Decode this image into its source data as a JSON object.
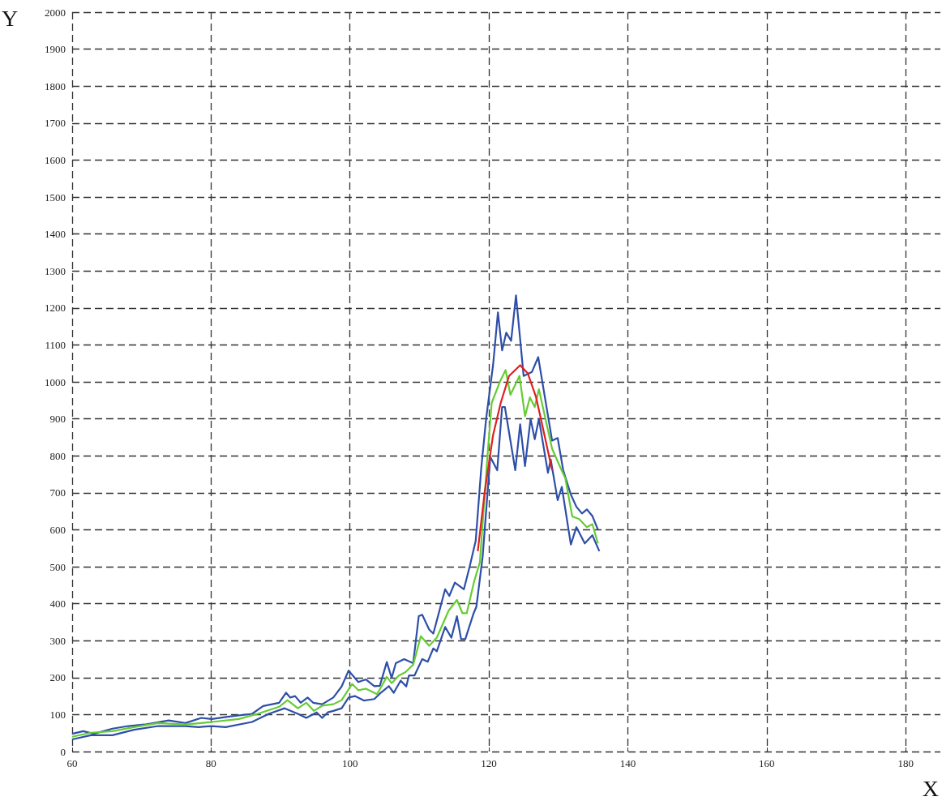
{
  "chart_data": {
    "type": "line",
    "xlabel": "X",
    "ylabel": "Y",
    "xlim": [
      60,
      185
    ],
    "xticks": [
      60,
      80,
      100,
      120,
      140,
      160,
      180
    ],
    "ylim": [
      0,
      2000
    ],
    "yticks": [
      0,
      100,
      200,
      300,
      400,
      500,
      600,
      700,
      800,
      900,
      1000,
      1100,
      1200,
      1300,
      1400,
      1500,
      1600,
      1700,
      1800,
      1900,
      2000
    ],
    "grid": true,
    "marker": "none",
    "line_style": "solid",
    "series": [
      {
        "color": "#2e4fa8",
        "x": [
          60,
          61.6,
          63.1,
          65.8,
          68.1,
          70.4,
          73.9,
          76.3,
          78.6,
          80.1,
          82.8,
          85.9,
          87.5,
          89.8,
          90.8,
          91.4,
          92.1,
          92.9,
          93.9,
          94.7,
          96,
          97.6,
          98.8,
          99.8,
          101.2,
          102.3,
          103.5,
          104.3,
          105.3,
          106,
          106.6,
          107.8,
          109.1,
          109.9,
          110.4,
          111.4,
          112,
          113.7,
          114.3,
          115.1,
          116.4,
          117.2,
          118.1,
          118.9,
          119.6,
          120.6,
          121.3,
          121.9,
          122.5,
          123.2,
          123.9,
          125,
          126.2,
          127.1,
          129.1,
          129.9,
          130.7,
          131.8,
          132.6,
          133.4,
          134.1,
          134.9,
          135.7
        ],
        "values": [
          48,
          55,
          48,
          62,
          69,
          73,
          84,
          77,
          91,
          88,
          95,
          102,
          123,
          132,
          159,
          146,
          150,
          132,
          146,
          132,
          128,
          146,
          176,
          219,
          188,
          195,
          177,
          178,
          242,
          199,
          239,
          250,
          239,
          366,
          370,
          330,
          319,
          439,
          421,
          457,
          439,
          498,
          570,
          767,
          900,
          1045,
          1188,
          1085,
          1133,
          1111,
          1234,
          1016,
          1027,
          1067,
          841,
          848,
          761,
          695,
          662,
          644,
          655,
          637,
          600
        ]
      },
      {
        "color": "#2e4fa8",
        "x": [
          60,
          62.7,
          65.8,
          68.9,
          72.4,
          76.3,
          78.2,
          80.1,
          82.1,
          85.9,
          88.3,
          90.6,
          92.5,
          93.7,
          95.2,
          96,
          96.8,
          97.6,
          98.8,
          99.8,
          100.7,
          102,
          103.5,
          104.5,
          105.6,
          106.3,
          107.3,
          108.1,
          108.5,
          109.3,
          110.4,
          111.2,
          112,
          112.5,
          113.7,
          114.6,
          115.4,
          116,
          116.6,
          117.8,
          118.2,
          119.1,
          120.2,
          121.2,
          121.9,
          122.3,
          123.8,
          124.5,
          125.2,
          126,
          126.6,
          127.2,
          128.5,
          128.9,
          129.9,
          130.5,
          131.8,
          132.6,
          133.8,
          134.9,
          135.9
        ],
        "values": [
          33,
          44,
          44,
          59,
          69,
          69,
          66,
          69,
          66,
          80,
          102,
          117,
          102,
          91,
          106,
          91,
          106,
          110,
          117,
          146,
          150,
          138,
          142,
          160,
          177,
          159,
          192,
          176,
          206,
          206,
          250,
          243,
          279,
          271,
          337,
          308,
          366,
          304,
          304,
          374,
          392,
          527,
          797,
          761,
          932,
          932,
          761,
          885,
          772,
          900,
          845,
          900,
          754,
          790,
          680,
          716,
          560,
          607,
          563,
          585,
          542
        ]
      },
      {
        "color": "#66cc33",
        "x": [
          60,
          62.7,
          65.8,
          68.9,
          72.4,
          76.3,
          80.1,
          84,
          86.7,
          89.8,
          91,
          92.5,
          93.7,
          94.8,
          96,
          97.6,
          98.8,
          100.3,
          101.2,
          102.3,
          103.9,
          105.3,
          106,
          107,
          108,
          109.1,
          110.2,
          111.4,
          112.5,
          114.2,
          115.4,
          116.2,
          116.8,
          117.9,
          118.7,
          119.8,
          120.4,
          121.6,
          122.4,
          123.1,
          124.4,
          125.2,
          125.9,
          126.6,
          127.2,
          129.1,
          130.3,
          131,
          132,
          133,
          134.1,
          134.9,
          135.7
        ],
        "values": [
          40,
          51,
          55,
          66,
          77,
          73,
          80,
          88,
          102,
          121,
          139,
          117,
          132,
          110,
          124,
          128,
          139,
          183,
          166,
          170,
          155,
          202,
          185,
          205,
          215,
          235,
          312,
          286,
          308,
          381,
          410,
          374,
          374,
          462,
          512,
          800,
          943,
          1001,
          1032,
          965,
          1016,
          907,
          958,
          932,
          980,
          819,
          768,
          739,
          636,
          629,
          607,
          615,
          563
        ]
      },
      {
        "color": "#e02020",
        "x": [
          118.4,
          119.4,
          120.6,
          121.7,
          122.9,
          124.5,
          125.6,
          126.8,
          128,
          129.1
        ],
        "values": [
          542,
          702,
          856,
          943,
          1016,
          1045,
          1023,
          958,
          856,
          761
        ]
      }
    ]
  }
}
